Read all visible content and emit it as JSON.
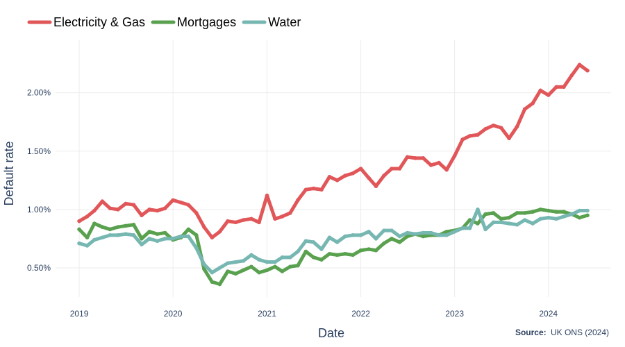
{
  "chart_data": {
    "type": "line",
    "xlabel": "Date",
    "ylabel": "Default rate",
    "x_axis": {
      "type": "date",
      "range": [
        "2018-10-01",
        "2024-09-01"
      ],
      "ticks": [
        {
          "date": "2019-01-01",
          "label": "2019"
        },
        {
          "date": "2020-01-01",
          "label": "2020"
        },
        {
          "date": "2021-01-01",
          "label": "2021"
        },
        {
          "date": "2022-01-01",
          "label": "2022"
        },
        {
          "date": "2023-01-01",
          "label": "2023"
        },
        {
          "date": "2024-01-01",
          "label": "2024"
        }
      ]
    },
    "y_axis": {
      "range": [
        0.25,
        2.45
      ],
      "ticks": [
        {
          "value": 0.5,
          "label": "0.50%"
        },
        {
          "value": 1.0,
          "label": "1.00%"
        },
        {
          "value": 1.5,
          "label": "1.50%"
        },
        {
          "value": 2.0,
          "label": "2.00%"
        }
      ]
    },
    "grid": true,
    "legend": {
      "position": "top-left",
      "orientation": "horizontal"
    },
    "source": {
      "label": "Source:",
      "text": "UK ONS (2024)"
    },
    "x": [
      "2019-01",
      "2019-02",
      "2019-03",
      "2019-04",
      "2019-05",
      "2019-06",
      "2019-07",
      "2019-08",
      "2019-09",
      "2019-10",
      "2019-11",
      "2019-12",
      "2020-01",
      "2020-02",
      "2020-03",
      "2020-04",
      "2020-05",
      "2020-06",
      "2020-07",
      "2020-08",
      "2020-09",
      "2020-10",
      "2020-11",
      "2020-12",
      "2021-01",
      "2021-02",
      "2021-03",
      "2021-04",
      "2021-05",
      "2021-06",
      "2021-07",
      "2021-08",
      "2021-09",
      "2021-10",
      "2021-11",
      "2021-12",
      "2022-01",
      "2022-02",
      "2022-03",
      "2022-04",
      "2022-05",
      "2022-06",
      "2022-07",
      "2022-08",
      "2022-09",
      "2022-10",
      "2022-11",
      "2022-12",
      "2023-01",
      "2023-02",
      "2023-03",
      "2023-04",
      "2023-05",
      "2023-06",
      "2023-07",
      "2023-08",
      "2023-09",
      "2023-10",
      "2023-11",
      "2023-12",
      "2024-01",
      "2024-02",
      "2024-03",
      "2024-04",
      "2024-05",
      "2024-06"
    ],
    "series": [
      {
        "name": "Electricity & Gas",
        "color": "#e15759",
        "values": [
          0.9,
          0.94,
          0.99,
          1.07,
          1.01,
          1.0,
          1.05,
          1.04,
          0.95,
          1.0,
          0.99,
          1.01,
          1.08,
          1.06,
          1.04,
          0.97,
          0.85,
          0.76,
          0.81,
          0.9,
          0.89,
          0.91,
          0.92,
          0.89,
          1.12,
          0.92,
          0.94,
          0.97,
          1.08,
          1.17,
          1.18,
          1.17,
          1.28,
          1.25,
          1.29,
          1.31,
          1.35,
          1.27,
          1.2,
          1.29,
          1.35,
          1.35,
          1.45,
          1.44,
          1.44,
          1.38,
          1.4,
          1.34,
          1.46,
          1.6,
          1.63,
          1.64,
          1.69,
          1.72,
          1.7,
          1.61,
          1.71,
          1.86,
          1.91,
          2.02,
          1.98,
          2.05,
          2.05,
          2.15,
          2.24,
          2.19
        ]
      },
      {
        "name": "Mortgages",
        "color": "#59a14f",
        "values": [
          0.83,
          0.76,
          0.88,
          0.85,
          0.83,
          0.85,
          0.86,
          0.87,
          0.75,
          0.81,
          0.79,
          0.8,
          0.74,
          0.76,
          0.83,
          0.78,
          0.49,
          0.38,
          0.36,
          0.47,
          0.45,
          0.48,
          0.51,
          0.46,
          0.48,
          0.51,
          0.47,
          0.51,
          0.52,
          0.64,
          0.59,
          0.57,
          0.62,
          0.61,
          0.62,
          0.61,
          0.65,
          0.66,
          0.65,
          0.71,
          0.75,
          0.72,
          0.77,
          0.79,
          0.77,
          0.78,
          0.78,
          0.81,
          0.82,
          0.84,
          0.91,
          0.88,
          0.96,
          0.97,
          0.92,
          0.93,
          0.97,
          0.97,
          0.98,
          1.0,
          0.99,
          0.98,
          0.98,
          0.96,
          0.93,
          0.95
        ]
      },
      {
        "name": "Water",
        "color": "#76b7b2",
        "values": [
          0.71,
          0.69,
          0.74,
          0.76,
          0.78,
          0.78,
          0.79,
          0.78,
          0.7,
          0.75,
          0.73,
          0.75,
          0.75,
          0.77,
          0.77,
          0.67,
          0.53,
          0.46,
          0.5,
          0.54,
          0.55,
          0.56,
          0.61,
          0.57,
          0.55,
          0.55,
          0.59,
          0.59,
          0.64,
          0.73,
          0.72,
          0.66,
          0.76,
          0.72,
          0.77,
          0.78,
          0.78,
          0.81,
          0.75,
          0.82,
          0.82,
          0.77,
          0.8,
          0.79,
          0.8,
          0.8,
          0.78,
          0.78,
          0.81,
          0.84,
          0.84,
          1.0,
          0.83,
          0.89,
          0.89,
          0.88,
          0.87,
          0.91,
          0.88,
          0.92,
          0.93,
          0.92,
          0.94,
          0.96,
          0.99,
          0.99
        ]
      }
    ]
  }
}
